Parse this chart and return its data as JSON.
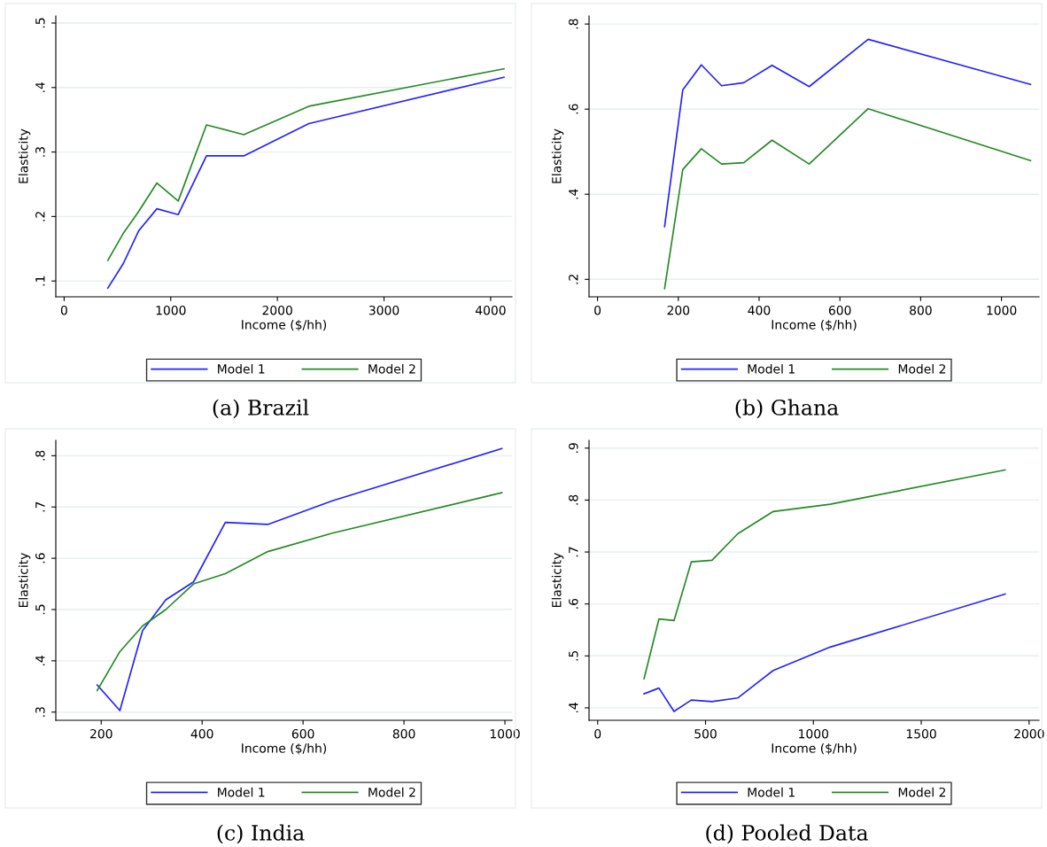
{
  "chart_data": [
    {
      "type": "line",
      "title": "(a) Brazil",
      "xlabel": "Income ($/hh)",
      "ylabel": "Elasticity",
      "x": [
        410,
        555,
        700,
        870,
        1070,
        1335,
        1685,
        2295,
        4125
      ],
      "series": [
        {
          "name": "Model 1",
          "color": "#2222ff",
          "values": [
            0.089,
            0.127,
            0.178,
            0.212,
            0.203,
            0.294,
            0.294,
            0.344,
            0.416
          ]
        },
        {
          "name": "Model 2",
          "color": "#228b22",
          "values": [
            0.132,
            0.174,
            0.208,
            0.252,
            0.224,
            0.342,
            0.327,
            0.371,
            0.429
          ]
        }
      ],
      "xlim": [
        -78,
        4200
      ],
      "xticks": [
        0,
        1000,
        2000,
        3000,
        4000
      ],
      "ylim": [
        0.0755,
        0.511
      ],
      "yticks": [
        {
          "value": 0.1,
          "label": ".1"
        },
        {
          "value": 0.2,
          "label": ".2"
        },
        {
          "value": 0.3,
          "label": ".3"
        },
        {
          "value": 0.4,
          "label": ".4"
        },
        {
          "value": 0.5,
          "label": ".5"
        }
      ],
      "grid": "y",
      "legend": "bottom"
    },
    {
      "type": "line",
      "title": "(b) Ghana",
      "xlabel": "Income ($/hh)",
      "ylabel": "Elasticity",
      "x": [
        166,
        211,
        257,
        307,
        362,
        432,
        524,
        670,
        1072
      ],
      "series": [
        {
          "name": "Model 1",
          "color": "#2222ff",
          "values": [
            0.324,
            0.645,
            0.704,
            0.655,
            0.662,
            0.703,
            0.653,
            0.764,
            0.658
          ]
        },
        {
          "name": "Model 2",
          "color": "#228b22",
          "values": [
            0.178,
            0.458,
            0.507,
            0.471,
            0.474,
            0.527,
            0.471,
            0.601,
            0.479
          ]
        }
      ],
      "xlim": [
        -21,
        1093
      ],
      "xticks": [
        0,
        200,
        400,
        600,
        800,
        1000
      ],
      "ylim": [
        0.159,
        0.819
      ],
      "yticks": [
        {
          "value": 0.2,
          "label": ".2"
        },
        {
          "value": 0.4,
          "label": ".4"
        },
        {
          "value": 0.6,
          "label": ".6"
        },
        {
          "value": 0.8,
          "label": ".8"
        }
      ],
      "grid": "y",
      "legend": "bottom"
    },
    {
      "type": "line",
      "title": "(c) India",
      "xlabel": "Income ($/hh)",
      "ylabel": "Elasticity",
      "x": [
        192,
        237,
        282,
        328,
        383,
        446,
        530,
        658,
        994
      ],
      "series": [
        {
          "name": "Model 1",
          "color": "#2222ff",
          "values": [
            0.353,
            0.303,
            0.459,
            0.519,
            0.554,
            0.67,
            0.666,
            0.712,
            0.814
          ]
        },
        {
          "name": "Model 2",
          "color": "#228b22",
          "values": [
            0.342,
            0.418,
            0.468,
            0.5,
            0.55,
            0.57,
            0.613,
            0.649,
            0.728
          ]
        }
      ],
      "xlim": [
        110,
        1014
      ],
      "xticks": [
        200,
        400,
        600,
        800,
        1000
      ],
      "ylim": [
        0.284,
        0.83
      ],
      "yticks": [
        {
          "value": 0.3,
          "label": ".3"
        },
        {
          "value": 0.4,
          "label": ".4"
        },
        {
          "value": 0.5,
          "label": ".5"
        },
        {
          "value": 0.6,
          "label": ".6"
        },
        {
          "value": 0.7,
          "label": ".7"
        },
        {
          "value": 0.8,
          "label": ".8"
        }
      ],
      "grid": "y",
      "legend": "bottom"
    },
    {
      "type": "line",
      "title": "(d) Pooled Data",
      "xlabel": "Income ($/hh)",
      "ylabel": "Elasticity",
      "x": [
        215,
        284,
        354,
        434,
        530,
        649,
        814,
        1078,
        1889
      ],
      "series": [
        {
          "name": "Model 1",
          "color": "#2222ff",
          "values": [
            0.427,
            0.438,
            0.393,
            0.415,
            0.412,
            0.419,
            0.472,
            0.517,
            0.619
          ]
        },
        {
          "name": "Model 2",
          "color": "#228b22",
          "values": [
            0.456,
            0.571,
            0.568,
            0.681,
            0.684,
            0.735,
            0.778,
            0.792,
            0.858
          ]
        }
      ],
      "xlim": [
        -40,
        2046
      ],
      "xticks": [
        0,
        500,
        1000,
        1500,
        2000
      ],
      "ylim": [
        0.376,
        0.915
      ],
      "yticks": [
        {
          "value": 0.4,
          "label": ".4"
        },
        {
          "value": 0.5,
          "label": ".5"
        },
        {
          "value": 0.6,
          "label": ".6"
        },
        {
          "value": 0.7,
          "label": ".7"
        },
        {
          "value": 0.8,
          "label": ".8"
        },
        {
          "value": 0.9,
          "label": ".9"
        }
      ],
      "grid": "y",
      "legend": "bottom"
    }
  ]
}
